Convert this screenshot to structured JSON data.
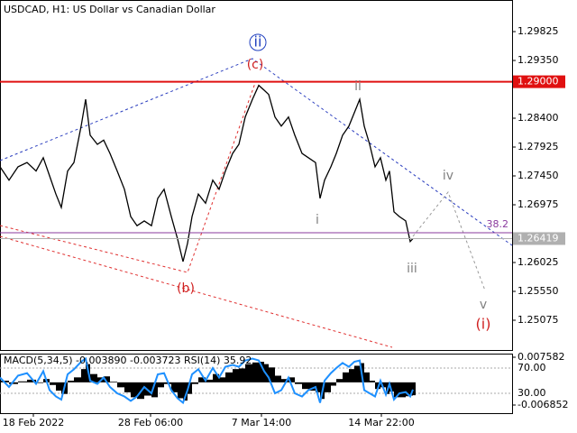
{
  "chart_data": [
    {
      "type": "line",
      "title": "USDCAD, H1:  US Dollar vs Canadian Dollar",
      "x": [
        0,
        10,
        20,
        30,
        40,
        48,
        55,
        62,
        68,
        75,
        82,
        90,
        95,
        100,
        108,
        115,
        122,
        130,
        138,
        145,
        152,
        160,
        168,
        175,
        182,
        190,
        197,
        203,
        208,
        213,
        220,
        228,
        236,
        243,
        250,
        258,
        265,
        272,
        280,
        287,
        293,
        298,
        305,
        312,
        320,
        327,
        335,
        342,
        350,
        355,
        360,
        367,
        373,
        380,
        387,
        393,
        399,
        404,
        410,
        416,
        422,
        428,
        432,
        437,
        443,
        450,
        455,
        458
      ],
      "series": [
        {
          "color": "#000000",
          "values": [
            1.276,
            1.2738,
            1.276,
            1.2767,
            1.2753,
            1.2775,
            1.2745,
            1.2715,
            1.2693,
            1.2753,
            1.2767,
            1.2827,
            1.2871,
            1.2812,
            1.2797,
            1.2804,
            1.2782,
            1.2753,
            1.2723,
            1.2678,
            1.2663,
            1.2671,
            1.2663,
            1.2708,
            1.2723,
            1.2678,
            1.2641,
            1.2604,
            1.2634,
            1.2678,
            1.2715,
            1.27,
            1.2738,
            1.2723,
            1.2753,
            1.2782,
            1.2797,
            1.2842,
            1.2871,
            1.2894,
            1.2886,
            1.2879,
            1.2842,
            1.2827,
            1.2842,
            1.2812,
            1.2782,
            1.2775,
            1.2767,
            1.2708,
            1.2738,
            1.276,
            1.2782,
            1.2812,
            1.2827,
            1.2849,
            1.2871,
            1.2827,
            1.2797,
            1.276,
            1.2775,
            1.2738,
            1.2753,
            1.2686,
            1.2678,
            1.2671,
            1.2637,
            1.26419
          ]
        }
      ],
      "xlim": [
        0,
        568
      ],
      "xticks": [
        {
          "value": 37,
          "label": "18 Feb 2022"
        },
        {
          "value": 167,
          "label": "28 Feb 06:00"
        },
        {
          "value": 290,
          "label": "7 Mar 14:00"
        },
        {
          "value": 423,
          "label": "14 Mar 22:00"
        }
      ],
      "ylim": [
        1.24585,
        1.30345
      ],
      "yticks": [
        {
          "value": 1.29825,
          "label": "1.29825"
        },
        {
          "value": 1.2935,
          "label": "1.29350"
        },
        {
          "value": 1.284,
          "label": "1.28400"
        },
        {
          "value": 1.27925,
          "label": "1.27925"
        },
        {
          "value": 1.2745,
          "label": "1.27450"
        },
        {
          "value": 1.26975,
          "label": "1.26975"
        },
        {
          "value": 1.26025,
          "label": "1.26025"
        },
        {
          "value": 1.2555,
          "label": "1.25550"
        },
        {
          "value": 1.25075,
          "label": "1.25075"
        }
      ],
      "levels": [
        {
          "value": 1.29,
          "label": "1.29000",
          "color": "#e01010",
          "box": true
        },
        {
          "value": 1.26515,
          "label": "38.2",
          "color": "#8a3a9e",
          "box": false
        },
        {
          "value": 1.26419,
          "label": "1.26419",
          "color": "#b0b0b0",
          "box": true
        }
      ],
      "annotations": [
        {
          "text": "ii",
          "color": "#1f3fbf"
        },
        {
          "text": "(c)",
          "color": "#d02020"
        },
        {
          "text": "ii",
          "color": "#808080"
        },
        {
          "text": "iv",
          "color": "#808080"
        },
        {
          "text": "i",
          "color": "#808080"
        },
        {
          "text": "iii",
          "color": "#808080"
        },
        {
          "text": "(b)",
          "color": "#d02020"
        },
        {
          "text": "v",
          "color": "#808080"
        },
        {
          "text": "(i)",
          "color": "#d02020"
        }
      ]
    },
    {
      "type": "bar",
      "title": "MACD(5,34,5) -0.003890 -0.003723 RSI(14) 35.92",
      "x": [
        0,
        10,
        20,
        30,
        40,
        48,
        55,
        62,
        68,
        75,
        82,
        90,
        95,
        100,
        108,
        115,
        122,
        130,
        138,
        145,
        152,
        160,
        168,
        175,
        182,
        190,
        197,
        203,
        208,
        213,
        220,
        228,
        236,
        243,
        250,
        258,
        265,
        272,
        280,
        287,
        293,
        298,
        305,
        312,
        320,
        327,
        335,
        342,
        350,
        355,
        360,
        367,
        373,
        380,
        387,
        393,
        399,
        404,
        410,
        416,
        422,
        428,
        432,
        437,
        443,
        450,
        455,
        458
      ],
      "series": [
        {
          "color": "#000000",
          "values": [
            0.0005,
            -0.0005,
            0.0003,
            0.0008,
            -0.0002,
            0.001,
            -0.0008,
            -0.0025,
            -0.0035,
            0.0005,
            0.0015,
            0.004,
            0.0055,
            0.0025,
            0.0015,
            0.0018,
            0.0002,
            -0.0015,
            -0.003,
            -0.0045,
            -0.005,
            -0.004,
            -0.0045,
            -0.0015,
            -0.0005,
            -0.003,
            -0.0048,
            -0.0055,
            -0.0035,
            -0.0005,
            0.0015,
            0.0008,
            0.0025,
            0.0015,
            0.003,
            0.004,
            0.0042,
            0.0055,
            0.006,
            0.0062,
            0.0055,
            0.0045,
            0.002,
            0.001,
            0.0015,
            -0.0005,
            -0.002,
            -0.0025,
            -0.003,
            -0.005,
            -0.003,
            -0.001,
            0.001,
            0.003,
            0.004,
            0.005,
            0.0058,
            0.003,
            0.0005,
            -0.002,
            -0.0015,
            -0.0035,
            -0.0028,
            -0.0045,
            -0.0045,
            -0.0042,
            -0.004,
            -0.00389
          ]
        },
        {
          "color": "#1e90ff",
          "axis": "y2",
          "values": [
            55,
            40,
            58,
            62,
            45,
            65,
            35,
            25,
            20,
            60,
            68,
            80,
            85,
            50,
            45,
            55,
            40,
            30,
            25,
            18,
            25,
            40,
            30,
            60,
            62,
            35,
            22,
            15,
            35,
            60,
            68,
            50,
            70,
            55,
            72,
            75,
            72,
            82,
            85,
            82,
            65,
            55,
            30,
            35,
            55,
            30,
            25,
            35,
            40,
            15,
            50,
            62,
            70,
            78,
            72,
            80,
            82,
            35,
            30,
            25,
            50,
            28,
            45,
            20,
            30,
            32,
            25,
            35.92
          ]
        }
      ],
      "xlim": [
        0,
        568
      ],
      "ylim": [
        -0.0093,
        0.00867
      ],
      "yticks": [
        0.007582,
        -0.006852
      ],
      "y2lim": [
        -1.43,
        92.86
      ],
      "y2ticks": [
        {
          "value": 70,
          "label": "70.00"
        },
        {
          "value": 30,
          "label": "30.00"
        }
      ]
    }
  ]
}
